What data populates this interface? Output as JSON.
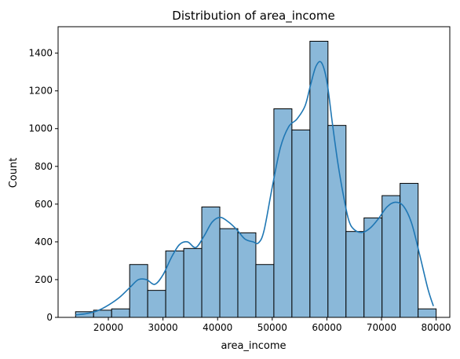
{
  "chart_data": {
    "type": "bar",
    "title": "Distribution of area_income",
    "xlabel": "area_income",
    "ylabel": "Count",
    "xlim": [
      10800,
      82500
    ],
    "ylim": [
      0,
      1540
    ],
    "xticks": [
      20000,
      30000,
      40000,
      50000,
      60000,
      70000,
      80000
    ],
    "xtick_labels": [
      "20000",
      "30000",
      "40000",
      "50000",
      "60000",
      "70000",
      "80000"
    ],
    "yticks": [
      0,
      200,
      400,
      600,
      800,
      1000,
      1200,
      1400
    ],
    "ytick_labels": [
      "0",
      "200",
      "400",
      "600",
      "800",
      "1000",
      "1200",
      "1400"
    ],
    "bins": [
      {
        "x0": 14000,
        "x1": 17300,
        "count": 30
      },
      {
        "x0": 17300,
        "x1": 20600,
        "count": 38
      },
      {
        "x0": 20600,
        "x1": 23900,
        "count": 45
      },
      {
        "x0": 23900,
        "x1": 27200,
        "count": 280
      },
      {
        "x0": 27200,
        "x1": 30500,
        "count": 143
      },
      {
        "x0": 30500,
        "x1": 33800,
        "count": 352
      },
      {
        "x0": 33800,
        "x1": 37100,
        "count": 365
      },
      {
        "x0": 37100,
        "x1": 40400,
        "count": 585
      },
      {
        "x0": 40400,
        "x1": 43700,
        "count": 470
      },
      {
        "x0": 43700,
        "x1": 47000,
        "count": 448
      },
      {
        "x0": 47000,
        "x1": 50300,
        "count": 280
      },
      {
        "x0": 50300,
        "x1": 53600,
        "count": 1105
      },
      {
        "x0": 53600,
        "x1": 56900,
        "count": 993
      },
      {
        "x0": 56900,
        "x1": 60200,
        "count": 1463
      },
      {
        "x0": 60200,
        "x1": 63500,
        "count": 1017
      },
      {
        "x0": 63500,
        "x1": 66800,
        "count": 455
      },
      {
        "x0": 66800,
        "x1": 70100,
        "count": 527
      },
      {
        "x0": 70100,
        "x1": 73400,
        "count": 645
      },
      {
        "x0": 73400,
        "x1": 76700,
        "count": 710
      },
      {
        "x0": 76700,
        "x1": 80000,
        "count": 45
      }
    ],
    "kde": {
      "x": [
        14000,
        16000,
        18000,
        20000,
        22000,
        24000,
        25500,
        27000,
        28500,
        30000,
        31500,
        33000,
        34500,
        36000,
        37500,
        39000,
        40500,
        42000,
        43500,
        45000,
        46500,
        47500,
        48500,
        50000,
        51500,
        53000,
        54500,
        56000,
        57000,
        58000,
        59000,
        60000,
        61000,
        62000,
        63000,
        64000,
        65000,
        66500,
        68000,
        69500,
        71000,
        72500,
        74000,
        75500,
        77000,
        78500,
        79500
      ],
      "y": [
        13,
        20,
        35,
        65,
        105,
        160,
        200,
        200,
        175,
        225,
        315,
        385,
        400,
        370,
        430,
        505,
        530,
        505,
        465,
        415,
        400,
        395,
        460,
        690,
        900,
        1010,
        1050,
        1120,
        1230,
        1330,
        1350,
        1250,
        1030,
        820,
        650,
        515,
        465,
        450,
        475,
        525,
        585,
        610,
        590,
        500,
        330,
        150,
        60
      ]
    },
    "bar_fill": "#8ab8d9",
    "bar_edge": "#000000",
    "kde_color": "#1f77b4",
    "grid": false,
    "legend": "none"
  }
}
